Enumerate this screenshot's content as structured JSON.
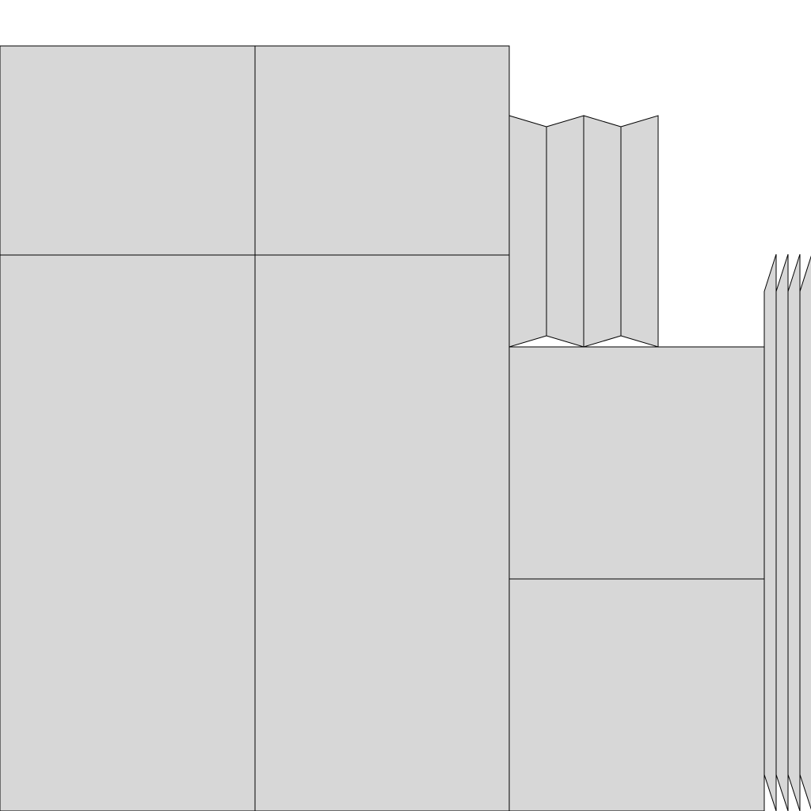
{
  "colors": {
    "fill": "#d7d7d7",
    "stroke": "#000000",
    "background": "#ffffff"
  }
}
